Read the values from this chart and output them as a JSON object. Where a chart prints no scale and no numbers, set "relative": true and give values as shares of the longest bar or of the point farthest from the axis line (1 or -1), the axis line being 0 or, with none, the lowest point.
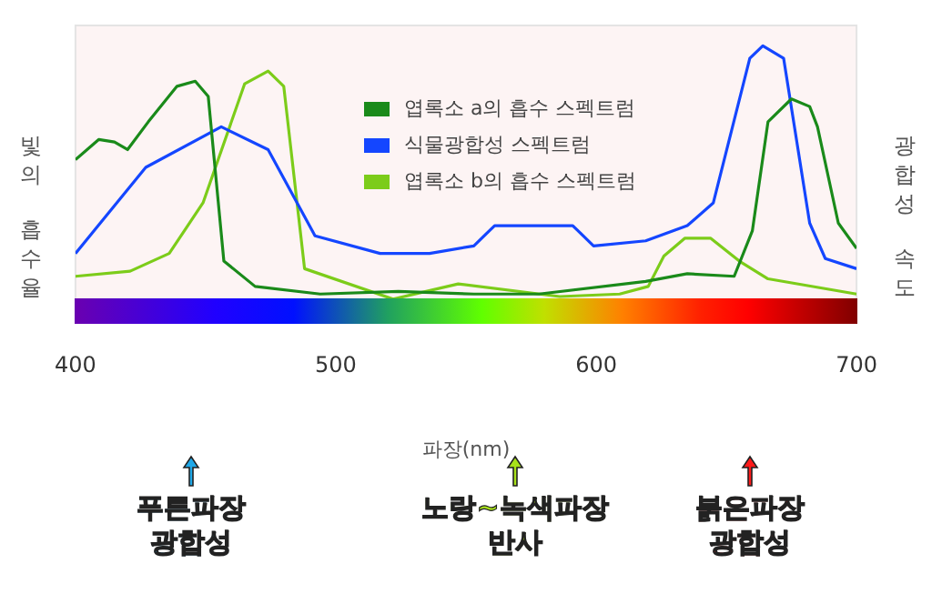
{
  "chart_data": {
    "type": "line",
    "relative": true,
    "xlabel": "파장(nm)",
    "ylabel": "빛의 흡수율",
    "y2label": "광합성 속도",
    "xlim": [
      400,
      700
    ],
    "xticks": [
      400,
      500,
      600,
      700
    ],
    "grid": false,
    "legend": "top",
    "marker": "none",
    "line_style": "solid",
    "series": [
      {
        "name": "엽록소 a의 흡수 스펙트럼",
        "color": "#1a8a1a",
        "x": [
          400,
          409,
          415,
          420,
          428,
          439,
          446,
          451,
          457,
          469,
          494,
          524,
          553,
          578,
          619,
          635,
          653,
          660,
          666,
          675,
          682,
          685,
          693,
          700
        ],
        "values": [
          0.55,
          0.63,
          0.62,
          0.59,
          0.7,
          0.84,
          0.86,
          0.8,
          0.15,
          0.05,
          0.02,
          0.03,
          0.02,
          0.02,
          0.07,
          0.1,
          0.09,
          0.27,
          0.7,
          0.79,
          0.76,
          0.68,
          0.3,
          0.2
        ]
      },
      {
        "name": "식물광합성 스펙트럼",
        "color": "#1446ff",
        "x": [
          400,
          427,
          456,
          474,
          492,
          517,
          536,
          553,
          561,
          591,
          599,
          619,
          635,
          645,
          659,
          664,
          672,
          682,
          688,
          700
        ],
        "values": [
          0.18,
          0.52,
          0.68,
          0.59,
          0.25,
          0.18,
          0.18,
          0.21,
          0.29,
          0.29,
          0.21,
          0.23,
          0.29,
          0.38,
          0.95,
          1.0,
          0.95,
          0.3,
          0.16,
          0.12
        ]
      },
      {
        "name": "엽록소 b의 흡수 스펙트럼",
        "color": "#7ccc1a",
        "x": [
          400,
          421,
          436,
          449,
          465,
          474,
          480,
          488,
          522,
          547,
          586,
          609,
          620,
          626,
          634,
          644,
          655,
          666,
          700
        ],
        "values": [
          0.09,
          0.11,
          0.18,
          0.38,
          0.85,
          0.9,
          0.84,
          0.12,
          0.0,
          0.06,
          0.01,
          0.02,
          0.05,
          0.17,
          0.24,
          0.24,
          0.15,
          0.08,
          0.02
        ]
      }
    ],
    "annotations": [
      "푸른파장\n광합성",
      "노랑~녹색파장\n반사",
      "붉은파장\n광합성"
    ]
  }
}
